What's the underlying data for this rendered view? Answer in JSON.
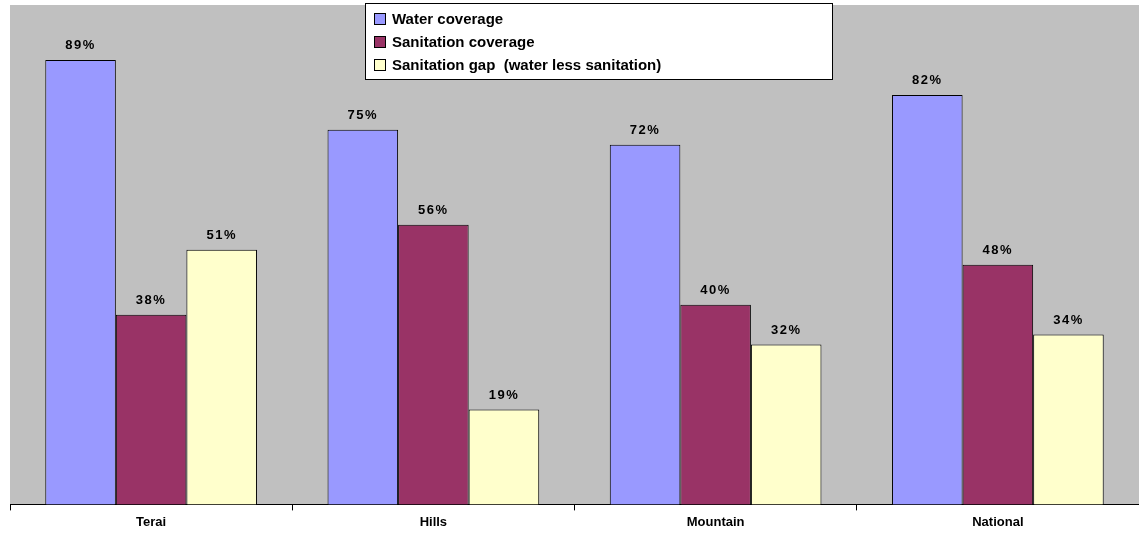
{
  "chart_data": {
    "type": "bar",
    "categories": [
      "Terai",
      "Hills",
      "Mountain",
      "National"
    ],
    "series": [
      {
        "name": "Water coverage",
        "color": "#9999ff",
        "values": [
          89,
          75,
          72,
          82
        ],
        "value_labels": [
          "89%",
          "75%",
          "72%",
          "82%"
        ]
      },
      {
        "name": "Sanitation coverage",
        "color": "#993366",
        "values": [
          38,
          56,
          40,
          48
        ],
        "value_labels": [
          "38%",
          "56%",
          "40%",
          "48%"
        ]
      },
      {
        "name": "Sanitation gap  (water less sanitation)",
        "color": "#ffffcc",
        "values": [
          51,
          19,
          32,
          34
        ],
        "value_labels": [
          "51%",
          "19%",
          "32%",
          "34%"
        ]
      }
    ],
    "ylim": [
      0,
      100
    ],
    "tick_labels": "x",
    "grid": false,
    "legend": "top"
  }
}
